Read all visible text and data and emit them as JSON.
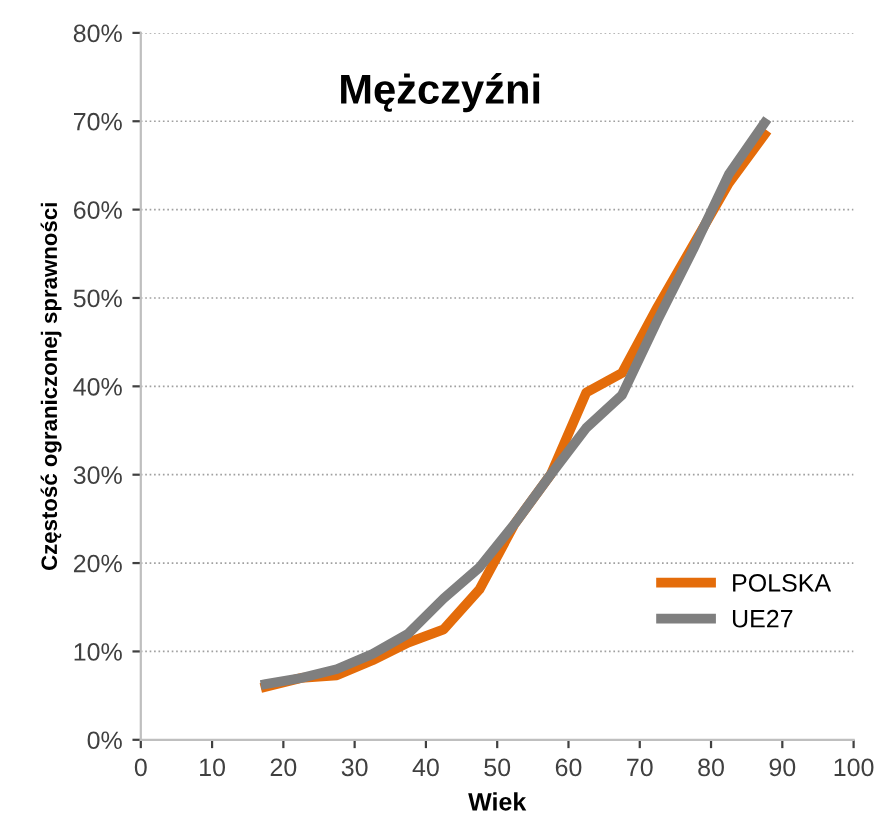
{
  "chart_data": {
    "type": "line",
    "title": "Mężczyźni",
    "xlabel": "Wiek",
    "ylabel": "Częstość ograniczonej sprawności",
    "x": [
      17.5,
      22.5,
      27.5,
      32.5,
      37.5,
      42.5,
      47.5,
      52.5,
      57.5,
      62.5,
      67.5,
      72.5,
      77.5,
      82.5,
      87.5
    ],
    "series": [
      {
        "name": "POLSKA",
        "color": "#e46c0a",
        "values": [
          6.0,
          7.0,
          7.3,
          9.0,
          11.0,
          12.5,
          17.0,
          24.5,
          30.0,
          39.3,
          41.5,
          49.0,
          56.0,
          63.0,
          68.5
        ]
      },
      {
        "name": "UE27",
        "color": "#7f7f7f",
        "values": [
          6.3,
          7.0,
          8.0,
          9.7,
          12.0,
          16.0,
          19.5,
          24.5,
          30.0,
          35.3,
          39.0,
          47.5,
          55.5,
          64.0,
          69.8
        ]
      }
    ],
    "xlim": [
      0,
      100
    ],
    "xticks": [
      0,
      10,
      20,
      30,
      40,
      50,
      60,
      70,
      80,
      90,
      100
    ],
    "ylim": [
      0,
      80
    ],
    "yticks": [
      {
        "value": 0,
        "label": "0%"
      },
      {
        "value": 10,
        "label": "10%"
      },
      {
        "value": 20,
        "label": "20%"
      },
      {
        "value": 30,
        "label": "30%"
      },
      {
        "value": 40,
        "label": "40%"
      },
      {
        "value": 50,
        "label": "50%"
      },
      {
        "value": 60,
        "label": "60%"
      },
      {
        "value": 70,
        "label": "70%"
      },
      {
        "value": 80,
        "label": "80%"
      }
    ],
    "grid": "y",
    "legend": "bottom right",
    "marker": "none",
    "line_style": "solid"
  }
}
